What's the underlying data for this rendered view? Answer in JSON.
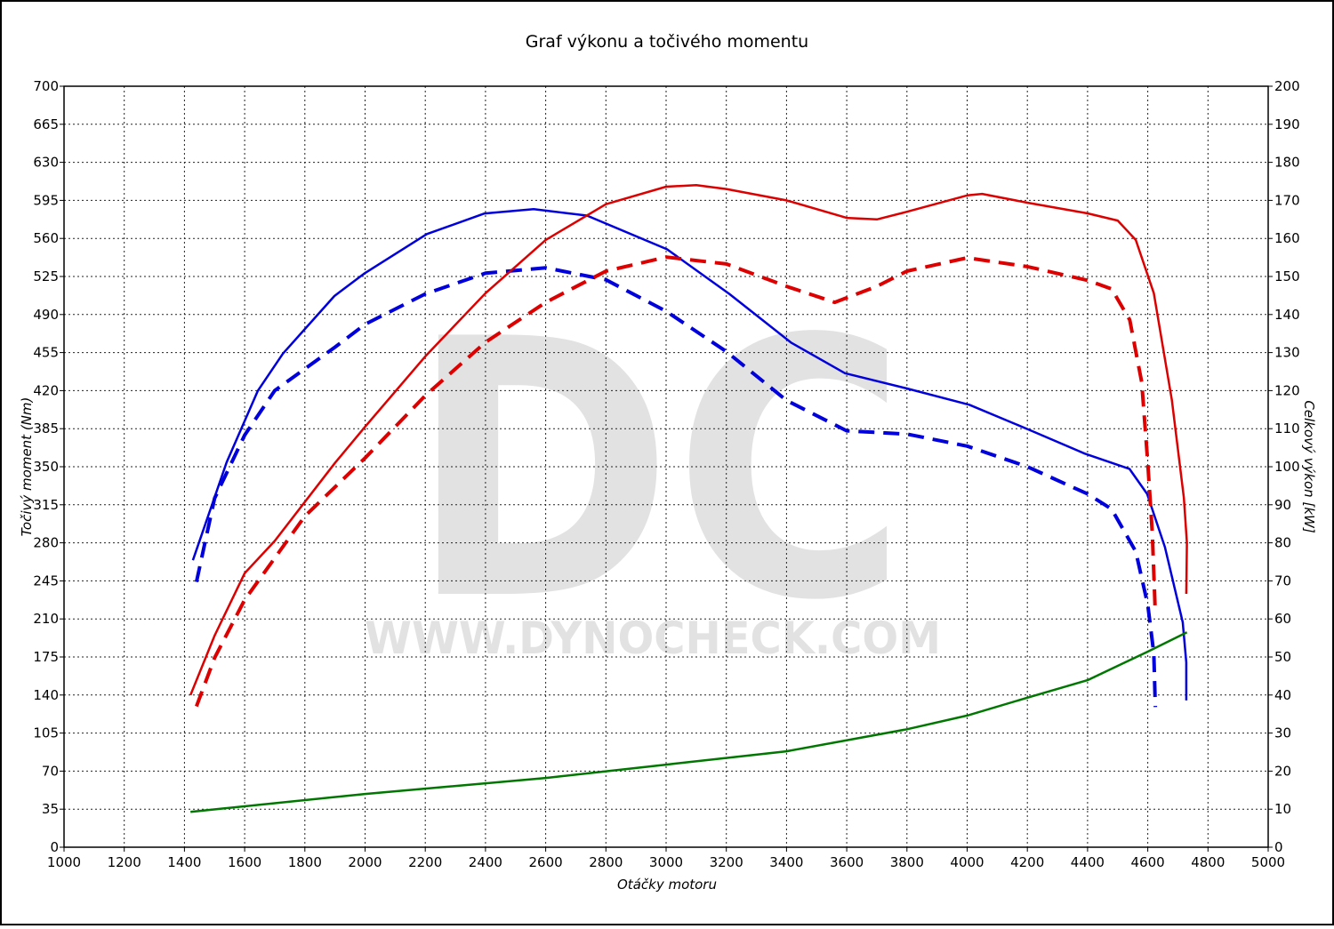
{
  "chart_data": {
    "type": "line",
    "title": "Graf výkonu a točivého momentu",
    "x_label": "Otáčky motoru",
    "y_label": "Točivý moment (Nm)",
    "y2_label": "Celkový výkon [kW]",
    "watermark": "DC",
    "watermark_url": "WWW.DYNOCHECK.COM",
    "grid": true,
    "xlim": [
      1000,
      5000
    ],
    "xticks": [
      1000,
      1200,
      1400,
      1600,
      1800,
      2000,
      2200,
      2400,
      2600,
      2800,
      3000,
      3200,
      3400,
      3600,
      3800,
      4000,
      4200,
      4400,
      4600,
      4800,
      5000
    ],
    "ylim": [
      0,
      700
    ],
    "yticks": [
      0,
      35,
      70,
      105,
      140,
      175,
      210,
      245,
      280,
      315,
      350,
      385,
      420,
      455,
      490,
      525,
      560,
      595,
      630,
      665,
      700
    ],
    "y2lim": [
      0,
      200
    ],
    "y2ticks": [
      0,
      10,
      20,
      30,
      40,
      50,
      60,
      70,
      80,
      90,
      100,
      110,
      120,
      130,
      140,
      150,
      160,
      170,
      180,
      190,
      200
    ],
    "series": [
      {
        "color": "#0000dd",
        "dashed": false,
        "axis": "y",
        "x": [
          1428,
          1540,
          1644,
          1727,
          1898,
          1999,
          2205,
          2397,
          2560,
          2737,
          3003,
          3210,
          3416,
          3594,
          3800,
          4007,
          4214,
          4391,
          4539,
          4598,
          4657,
          4716,
          4728,
          4728
        ],
        "values": [
          264,
          354,
          420,
          454,
          507,
          528,
          564,
          583,
          587,
          581,
          550,
          509,
          464,
          436,
          422,
          407,
          383,
          362,
          348,
          325,
          276,
          207,
          170,
          135
        ]
      },
      {
        "color": "#0000dd",
        "dashed": true,
        "axis": "y",
        "x": [
          1440,
          1500,
          1600,
          1700,
          1800,
          1900,
          2000,
          2200,
          2400,
          2600,
          2800,
          3000,
          3200,
          3400,
          3600,
          3800,
          4000,
          4200,
          4400,
          4480,
          4560,
          4600,
          4620,
          4625
        ],
        "values": [
          244,
          321,
          379,
          420,
          440,
          460,
          481,
          509,
          528,
          533,
          522,
          493,
          456,
          411,
          383,
          380,
          369,
          350,
          325,
          311,
          272,
          223,
          178,
          129
        ]
      },
      {
        "color": "#dd0000",
        "dashed": false,
        "axis": "y2",
        "x": [
          1420,
          1500,
          1600,
          1700,
          1900,
          2000,
          2200,
          2400,
          2600,
          2800,
          3000,
          3100,
          3200,
          3400,
          3600,
          3700,
          3800,
          4000,
          4050,
          4200,
          4400,
          4500,
          4560,
          4620,
          4680,
          4720,
          4730,
          4728
        ],
        "values": [
          40,
          55.6,
          72,
          80.5,
          101,
          110.5,
          129,
          145.6,
          159.6,
          169,
          173.6,
          174,
          173,
          170,
          165.4,
          165,
          167,
          171.3,
          171.7,
          169.4,
          166.6,
          164.7,
          159.6,
          145.6,
          117.5,
          91.8,
          80,
          66.6
        ]
      },
      {
        "color": "#dd0000",
        "dashed": true,
        "axis": "y2",
        "x": [
          1440,
          1500,
          1600,
          1800,
          2000,
          2200,
          2400,
          2600,
          2800,
          3000,
          3200,
          3400,
          3560,
          3700,
          3800,
          4000,
          4200,
          4400,
          4480,
          4540,
          4580,
          4600,
          4615,
          4625
        ],
        "values": [
          37,
          49.8,
          65,
          87,
          102.3,
          118.7,
          132.7,
          143.2,
          151.4,
          155.1,
          153.3,
          147.4,
          143.2,
          147.4,
          151.4,
          154.9,
          152.6,
          149,
          146.7,
          138.6,
          122.2,
          101,
          82.5,
          61.4
        ]
      },
      {
        "color": "#007700",
        "dashed": false,
        "axis": "y2",
        "x": [
          1420,
          2000,
          2600,
          3000,
          3400,
          3800,
          4000,
          4200,
          4400,
          4600,
          4730
        ],
        "values": [
          9.3,
          14,
          18.2,
          21.7,
          25.2,
          31,
          34.6,
          39.3,
          43.9,
          51.4,
          56.5
        ]
      }
    ]
  }
}
